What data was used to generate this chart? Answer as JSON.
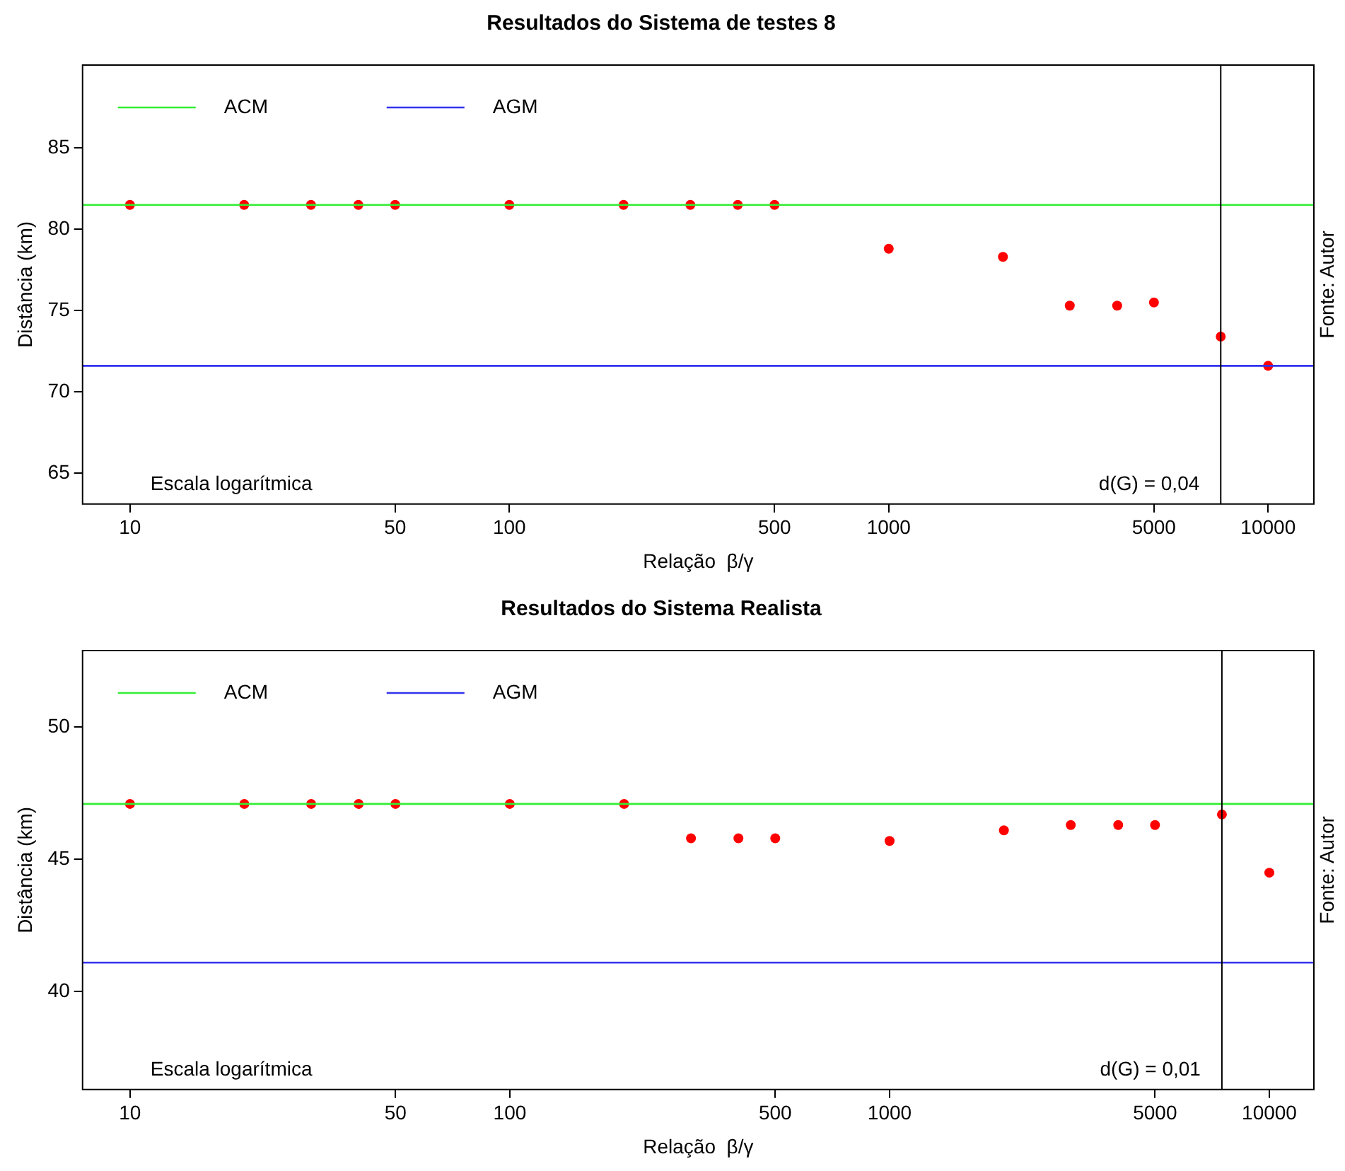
{
  "chart_data": [
    {
      "type": "scatter",
      "title": "Resultados do Sistema de testes 8",
      "xlabel": "Relação  β/γ",
      "ylabel": "Distância (km)",
      "log": "x",
      "legend": "top left",
      "xlim": [
        7.5,
        13200
      ],
      "xticks": [
        10,
        50,
        100,
        500,
        1000,
        5000,
        10000
      ],
      "ylim": [
        63.1,
        90.1
      ],
      "yticks": [
        65,
        70,
        75,
        80,
        85
      ],
      "x": [
        10,
        20,
        30,
        40,
        50,
        100,
        200,
        300,
        400,
        500,
        1000,
        2000,
        3000,
        4000,
        5000,
        7500,
        10000
      ],
      "series": [
        {
          "type": "line",
          "name": "ACM",
          "color": "#33ee33",
          "marker": "none",
          "x": [
            7.5,
            13200
          ],
          "values": [
            81.5,
            81.5
          ]
        },
        {
          "type": "line",
          "name": "AGM",
          "color": "#3333ee",
          "marker": "none",
          "x": [
            7.5,
            13200
          ],
          "values": [
            71.6,
            71.6
          ]
        },
        {
          "color": "#ff0000",
          "marker": "circle",
          "values": [
            81.5,
            81.5,
            81.5,
            81.5,
            81.5,
            81.5,
            81.5,
            81.5,
            81.5,
            81.5,
            78.8,
            78.3,
            75.3,
            75.3,
            75.5,
            73.4,
            71.6
          ]
        }
      ],
      "ref_lines": [
        {
          "axis": "x",
          "value": 7500,
          "label": null,
          "color": "#000000"
        }
      ],
      "annotations": [
        "Escala logarítmica",
        "d(G) = 0,04",
        "Fonte: Autor"
      ]
    },
    {
      "type": "scatter",
      "title": "Resultados do Sistema Realista",
      "xlabel": "Relação  β/γ",
      "ylabel": "Distância (km)",
      "log": "x",
      "legend": "top left",
      "xlim": [
        7.5,
        13100
      ],
      "xticks": [
        10,
        50,
        100,
        500,
        1000,
        5000,
        10000
      ],
      "ylim": [
        36.3,
        52.9
      ],
      "yticks": [
        40,
        45,
        50
      ],
      "x": [
        10,
        20,
        30,
        40,
        50,
        100,
        200,
        300,
        400,
        500,
        1000,
        2000,
        3000,
        4000,
        5000,
        7500,
        10000
      ],
      "series": [
        {
          "type": "line",
          "name": "ACM",
          "color": "#33ee33",
          "marker": "none",
          "x": [
            7.5,
            13100
          ],
          "values": [
            47.1,
            47.1
          ]
        },
        {
          "type": "line",
          "name": "AGM",
          "color": "#3333ee",
          "marker": "none",
          "x": [
            7.5,
            13100
          ],
          "values": [
            41.1,
            41.1
          ]
        },
        {
          "color": "#ff0000",
          "marker": "circle",
          "values": [
            47.1,
            47.1,
            47.1,
            47.1,
            47.1,
            47.1,
            47.1,
            45.8,
            45.8,
            45.8,
            45.7,
            46.1,
            46.3,
            46.3,
            46.3,
            46.7,
            44.5
          ]
        }
      ],
      "ref_lines": [
        {
          "axis": "x",
          "value": 7500,
          "label": null,
          "color": "#000000"
        }
      ],
      "annotations": [
        "Escala logarítmica",
        "d(G) = 0,01",
        "Fonte: Autor"
      ]
    }
  ]
}
